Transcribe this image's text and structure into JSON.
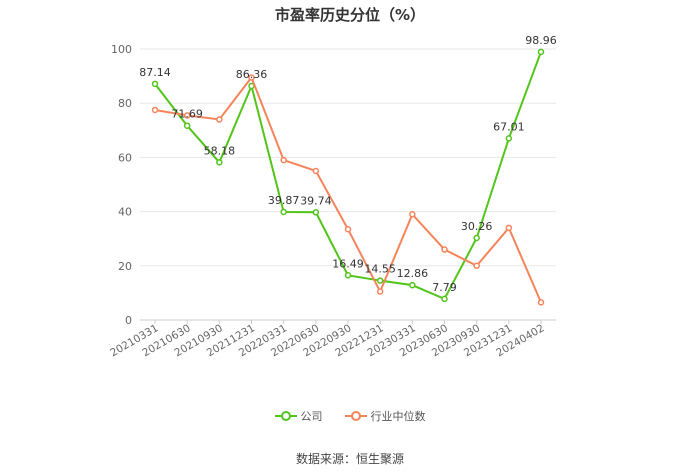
{
  "title": "市盈率历史分位（%）",
  "source": "数据来源：恒生聚源",
  "colors": {
    "company": "#52c41a",
    "industry": "#f5845a",
    "grid": "#e8e8e8",
    "axis_text": "#666666",
    "label_text": "#333333"
  },
  "chart_data": {
    "type": "line",
    "categories": [
      "20210331",
      "20210630",
      "20210930",
      "20211231",
      "20220331",
      "20220630",
      "20220930",
      "20221231",
      "20230331",
      "20230630",
      "20230930",
      "20231231",
      "20240402"
    ],
    "ylim": [
      0,
      100
    ],
    "yticks": [
      0,
      20,
      40,
      60,
      80,
      100
    ],
    "grid": true,
    "legend_position": "bottom",
    "series": [
      {
        "name": "公司",
        "values": [
          87.14,
          71.69,
          58.18,
          86.36,
          39.87,
          39.74,
          16.49,
          14.55,
          12.86,
          7.79,
          30.26,
          67.01,
          98.96
        ],
        "labels": [
          "87.14",
          "71.69",
          "58.18",
          "86.36",
          "39.87",
          "39.74",
          "16.49",
          "14.55",
          "12.86",
          "7.79",
          "30.26",
          "67.01",
          "98.96"
        ]
      },
      {
        "name": "行业中位数",
        "values": [
          77.5,
          75.5,
          74.0,
          89.5,
          59.0,
          55.0,
          33.5,
          10.5,
          39.0,
          26.0,
          20.0,
          34.0,
          6.5
        ]
      }
    ]
  }
}
